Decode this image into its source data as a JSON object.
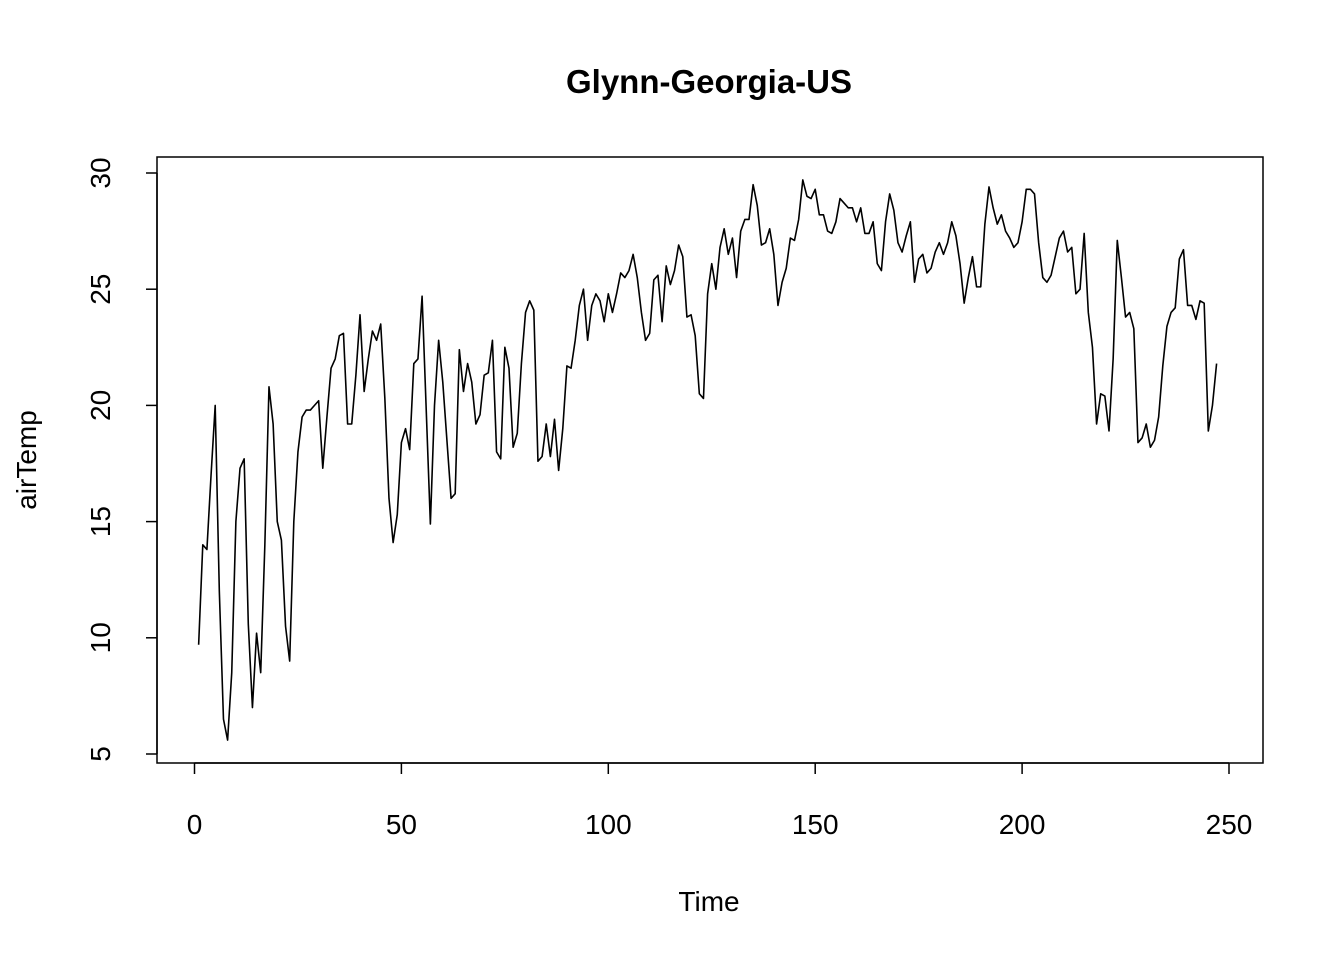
{
  "chart_data": {
    "type": "line",
    "title": "Glynn-Georgia-US",
    "xlabel": "Time",
    "ylabel": "airTemp",
    "xlim": [
      0,
      250
    ],
    "ylim": [
      5,
      30
    ],
    "xticks": [
      0,
      50,
      100,
      150,
      200,
      250
    ],
    "yticks": [
      5,
      10,
      15,
      20,
      25,
      30
    ],
    "grid": false,
    "legend": "none",
    "line_color": "#000000",
    "x_start": 1,
    "x_step": 1,
    "values": [
      9.7,
      14.0,
      13.8,
      17.0,
      20.0,
      12.0,
      6.5,
      5.6,
      8.5,
      15.0,
      17.3,
      17.7,
      10.6,
      7.0,
      10.2,
      8.5,
      14.0,
      20.8,
      19.2,
      15.0,
      14.2,
      10.5,
      9.0,
      15.0,
      18.0,
      19.5,
      19.8,
      19.8,
      20.0,
      20.2,
      17.3,
      19.5,
      21.6,
      22.0,
      23.0,
      23.1,
      19.2,
      19.2,
      21.3,
      23.9,
      20.6,
      22.0,
      23.2,
      22.8,
      23.5,
      20.3,
      16.0,
      14.1,
      15.3,
      18.4,
      19.0,
      18.1,
      21.8,
      22.0,
      24.7,
      19.8,
      14.9,
      20.0,
      22.8,
      21.0,
      18.5,
      16.0,
      16.2,
      22.4,
      20.6,
      21.8,
      21.0,
      19.2,
      19.6,
      21.3,
      21.4,
      22.8,
      18.0,
      17.7,
      22.5,
      21.6,
      18.2,
      18.8,
      21.8,
      24.0,
      24.5,
      24.1,
      17.6,
      17.8,
      19.2,
      17.8,
      19.4,
      17.2,
      19.0,
      21.7,
      21.6,
      22.8,
      24.3,
      25.0,
      22.8,
      24.3,
      24.8,
      24.5,
      23.6,
      24.8,
      24.0,
      24.8,
      25.7,
      25.5,
      25.8,
      26.5,
      25.5,
      24.0,
      22.8,
      23.1,
      25.4,
      25.6,
      23.6,
      26.0,
      25.2,
      25.8,
      26.9,
      26.4,
      23.8,
      23.9,
      23.0,
      20.5,
      20.3,
      24.8,
      26.1,
      25.0,
      26.8,
      27.6,
      26.5,
      27.2,
      25.5,
      27.5,
      28.0,
      28.0,
      29.5,
      28.6,
      26.9,
      27.0,
      27.6,
      26.5,
      24.3,
      25.3,
      25.9,
      27.2,
      27.1,
      28.0,
      29.7,
      29.0,
      28.9,
      29.3,
      28.2,
      28.2,
      27.5,
      27.4,
      27.9,
      28.9,
      28.7,
      28.5,
      28.5,
      27.9,
      28.5,
      27.4,
      27.4,
      27.9,
      26.1,
      25.8,
      27.9,
      29.1,
      28.4,
      27.0,
      26.6,
      27.3,
      27.9,
      25.3,
      26.3,
      26.5,
      25.7,
      25.9,
      26.6,
      27.0,
      26.5,
      27.0,
      27.9,
      27.3,
      26.1,
      24.4,
      25.5,
      26.4,
      25.1,
      25.1,
      27.8,
      29.4,
      28.5,
      27.8,
      28.2,
      27.5,
      27.2,
      26.8,
      27.0,
      27.9,
      29.3,
      29.3,
      29.1,
      27.0,
      25.5,
      25.3,
      25.6,
      26.4,
      27.2,
      27.5,
      26.6,
      26.8,
      24.8,
      25.0,
      27.4,
      24.0,
      22.5,
      19.2,
      20.5,
      20.4,
      18.9,
      22.0,
      27.1,
      25.5,
      23.8,
      24.0,
      23.3,
      18.4,
      18.6,
      19.2,
      18.2,
      18.5,
      19.5,
      21.7,
      23.4,
      24.0,
      24.2,
      26.3,
      26.7,
      24.3,
      24.3,
      23.7,
      24.5,
      24.4,
      18.9,
      20.0,
      21.8
    ]
  }
}
